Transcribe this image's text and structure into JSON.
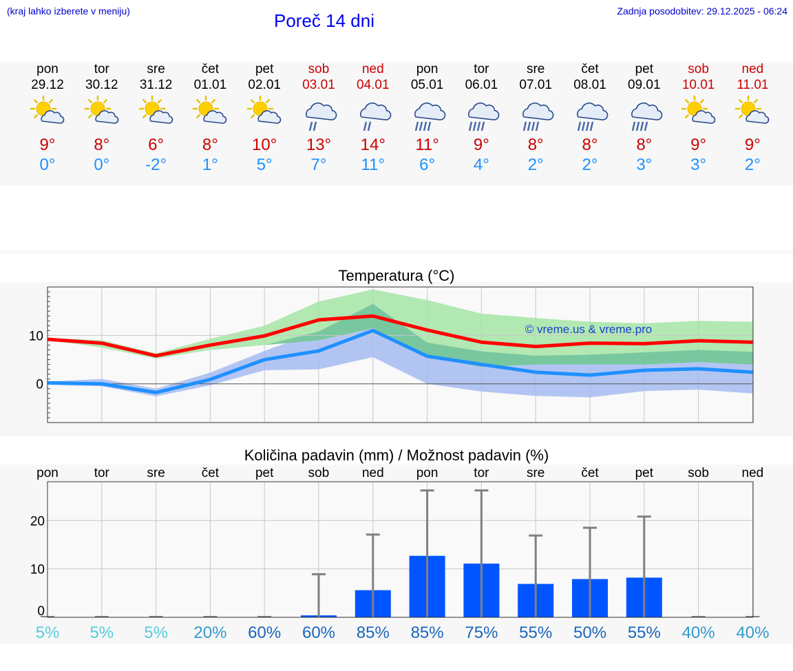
{
  "header": {
    "left_note": "(kraj lahko izberete v meniju)",
    "title": "Poreč 14 dni",
    "updated": "Zadnja posodobitev: 29.12.2025 - 06:24"
  },
  "colors": {
    "max": "#cc0000",
    "min": "#1e90ff",
    "weekend": "#cc0000",
    "bar": "#0055ff"
  },
  "days": [
    {
      "name": "pon",
      "date": "29.12",
      "icon": "sun-cloud-icon",
      "max": "9°",
      "min": "0°",
      "weekend": false
    },
    {
      "name": "tor",
      "date": "30.12",
      "icon": "sun-cloud-icon",
      "max": "8°",
      "min": "0°",
      "weekend": false
    },
    {
      "name": "sre",
      "date": "31.12",
      "icon": "sun-cloud-icon",
      "max": "6°",
      "min": "-2°",
      "weekend": false
    },
    {
      "name": "čet",
      "date": "01.01",
      "icon": "sun-cloud-icon",
      "max": "8°",
      "min": "1°",
      "weekend": false
    },
    {
      "name": "pet",
      "date": "02.01",
      "icon": "sun-cloud-icon",
      "max": "10°",
      "min": "5°",
      "weekend": false
    },
    {
      "name": "sob",
      "date": "03.01",
      "icon": "rain-cloud-icon",
      "max": "13°",
      "min": "7°",
      "weekend": true
    },
    {
      "name": "ned",
      "date": "04.01",
      "icon": "rain-cloud-icon",
      "max": "14°",
      "min": "11°",
      "weekend": true
    },
    {
      "name": "pon",
      "date": "05.01",
      "icon": "heavy-rain-cloud-icon",
      "max": "11°",
      "min": "6°",
      "weekend": false
    },
    {
      "name": "tor",
      "date": "06.01",
      "icon": "heavy-rain-cloud-icon",
      "max": "9°",
      "min": "4°",
      "weekend": false
    },
    {
      "name": "sre",
      "date": "07.01",
      "icon": "heavy-rain-cloud-icon",
      "max": "8°",
      "min": "2°",
      "weekend": false
    },
    {
      "name": "čet",
      "date": "08.01",
      "icon": "heavy-rain-cloud-icon",
      "max": "8°",
      "min": "2°",
      "weekend": false
    },
    {
      "name": "pet",
      "date": "09.01",
      "icon": "heavy-rain-cloud-icon",
      "max": "8°",
      "min": "3°",
      "weekend": false
    },
    {
      "name": "sob",
      "date": "10.01",
      "icon": "sun-cloud-icon",
      "max": "9°",
      "min": "3°",
      "weekend": true
    },
    {
      "name": "ned",
      "date": "11.01",
      "icon": "sun-cloud-icon",
      "max": "9°",
      "min": "2°",
      "weekend": true
    }
  ],
  "chart_data": [
    {
      "type": "line",
      "title": "Temperatura (°C)",
      "watermark": "© vreme.us & vreme.pro",
      "ylim": [
        -8,
        20
      ],
      "yticks": [
        0,
        10
      ],
      "grid": true,
      "series": [
        {
          "name": "max",
          "color": "#ff0000",
          "values": [
            9.2,
            8.4,
            5.8,
            8.0,
            9.9,
            13.2,
            14.0,
            11.1,
            8.6,
            7.7,
            8.4,
            8.3,
            8.9,
            8.6
          ]
        },
        {
          "name": "min",
          "color": "#1e90ff",
          "values": [
            0.2,
            0.0,
            -1.8,
            0.9,
            5.0,
            6.8,
            11.0,
            5.7,
            4.0,
            2.4,
            1.8,
            2.8,
            3.1,
            2.4
          ]
        },
        {
          "name": "max-range",
          "color": "#a0e4a0",
          "low": [
            9.0,
            7.5,
            5.2,
            7.0,
            8.0,
            9.0,
            11.5,
            5.5,
            3.5,
            4.0,
            4.0,
            4.0,
            4.5,
            4.0
          ],
          "high": [
            9.5,
            9.0,
            6.3,
            9.3,
            12.0,
            17.0,
            19.5,
            17.3,
            14.5,
            13.6,
            12.8,
            12.5,
            13.0,
            12.8
          ]
        },
        {
          "name": "min-range",
          "color": "#a0b8f0",
          "low": [
            -0.2,
            -0.5,
            -2.6,
            -0.3,
            2.8,
            3.0,
            5.5,
            0.0,
            -1.6,
            -2.5,
            -2.8,
            -1.5,
            -1.2,
            -2.0
          ],
          "high": [
            0.5,
            1.0,
            -1.0,
            2.3,
            6.8,
            10.8,
            16.5,
            8.5,
            6.7,
            5.8,
            6.0,
            6.5,
            7.0,
            6.6
          ]
        }
      ]
    },
    {
      "type": "bar",
      "title": "Količina padavin (mm) / Možnost padavin (%)",
      "categories": [
        "pon",
        "tor",
        "sre",
        "čet",
        "pet",
        "sob",
        "ned",
        "pon",
        "tor",
        "sre",
        "čet",
        "pet",
        "sob",
        "ned"
      ],
      "values": [
        0,
        0,
        0,
        0,
        0,
        0.4,
        5.6,
        12.7,
        11.1,
        6.9,
        7.9,
        8.2,
        0,
        0
      ],
      "error_high": [
        0,
        0,
        0,
        0,
        0,
        8.9,
        17.1,
        26.2,
        26.2,
        16.9,
        18.5,
        20.8,
        0,
        0
      ],
      "probability": [
        "5%",
        "5%",
        "5%",
        "20%",
        "60%",
        "60%",
        "85%",
        "85%",
        "75%",
        "55%",
        "50%",
        "55%",
        "40%",
        "40%"
      ],
      "ylim": [
        0,
        28
      ],
      "yticks": [
        0,
        10,
        20
      ]
    }
  ]
}
